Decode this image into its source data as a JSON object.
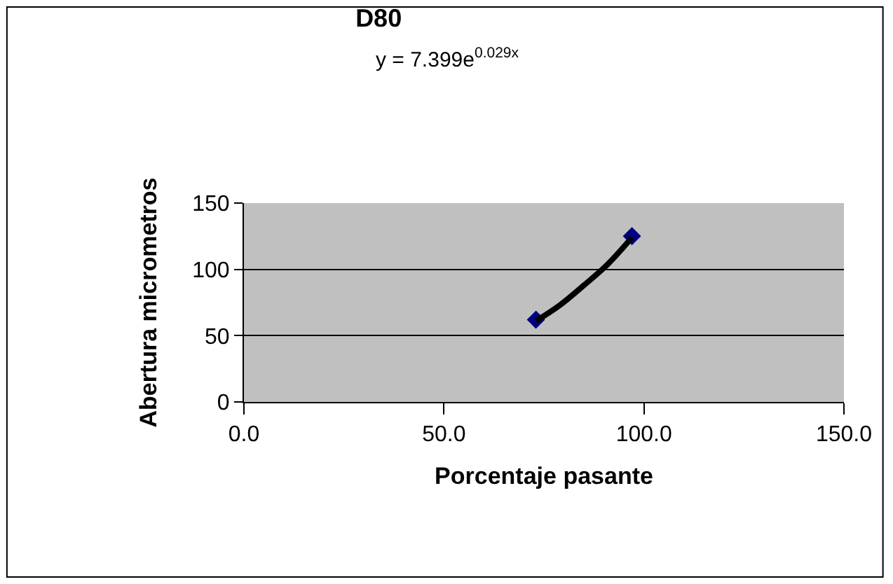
{
  "chart_data": {
    "type": "scatter",
    "title": "D80",
    "xlabel": "Porcentaje pasante",
    "ylabel": "Abertura micrometros",
    "annotations": [
      "y = 7.399e$^{0.029x}$"
    ],
    "series": [
      {
        "color": "#000080",
        "x": [
          73,
          97
        ],
        "values": [
          62,
          125
        ],
        "marker": "diamond"
      },
      {
        "type": "line",
        "color": "#000000",
        "x": [
          73,
          79,
          85,
          91,
          97
        ],
        "values": [
          61,
          73,
          88,
          104,
          124
        ]
      }
    ],
    "xlim": [
      0,
      150
    ],
    "xticks": [
      {
        "value": 0,
        "label": "0.0"
      },
      {
        "value": 50,
        "label": "50.0"
      },
      {
        "value": 100,
        "label": "100.0"
      },
      {
        "value": 150,
        "label": "150.0"
      }
    ],
    "ylim": [
      0,
      150
    ],
    "yticks": [
      0,
      50,
      100,
      150
    ],
    "grid": "y"
  }
}
